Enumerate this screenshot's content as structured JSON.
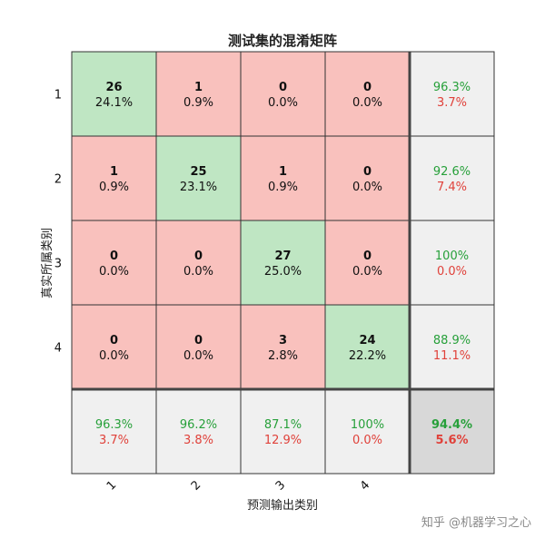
{
  "chart_data": {
    "type": "heatmap",
    "title": "测试集的混淆矩阵",
    "xlabel": "预测输出类别",
    "ylabel": "真实所属类别",
    "row_categories": [
      "1",
      "2",
      "3",
      "4"
    ],
    "col_categories": [
      "1",
      "2",
      "3",
      "4"
    ],
    "counts": [
      [
        26,
        1,
        0,
        0
      ],
      [
        1,
        25,
        1,
        0
      ],
      [
        0,
        0,
        27,
        0
      ],
      [
        0,
        0,
        3,
        24
      ]
    ],
    "cell_percents": [
      [
        "24.1%",
        "0.9%",
        "0.0%",
        "0.0%"
      ],
      [
        "0.9%",
        "23.1%",
        "0.9%",
        "0.0%"
      ],
      [
        "0.0%",
        "0.0%",
        "25.0%",
        "0.0%"
      ],
      [
        "0.0%",
        "0.0%",
        "2.8%",
        "22.2%"
      ]
    ],
    "row_summary": [
      {
        "correct": "96.3%",
        "wrong": "3.7%"
      },
      {
        "correct": "92.6%",
        "wrong": "7.4%"
      },
      {
        "correct": "100%",
        "wrong": "0.0%"
      },
      {
        "correct": "88.9%",
        "wrong": "11.1%"
      }
    ],
    "col_summary": [
      {
        "correct": "96.3%",
        "wrong": "3.7%"
      },
      {
        "correct": "96.2%",
        "wrong": "3.8%"
      },
      {
        "correct": "87.1%",
        "wrong": "12.9%"
      },
      {
        "correct": "100%",
        "wrong": "0.0%"
      }
    ],
    "overall": {
      "correct": "94.4%",
      "wrong": "5.6%"
    }
  },
  "colors": {
    "diagonal": "#bfe6c3",
    "off_diagonal": "#f9c1bd",
    "summary": "#f0f0f0",
    "overall": "#d8d8d8",
    "correct_text": "#27a03a",
    "wrong_text": "#e0413a"
  },
  "watermark": "知乎 @机器学习之心"
}
